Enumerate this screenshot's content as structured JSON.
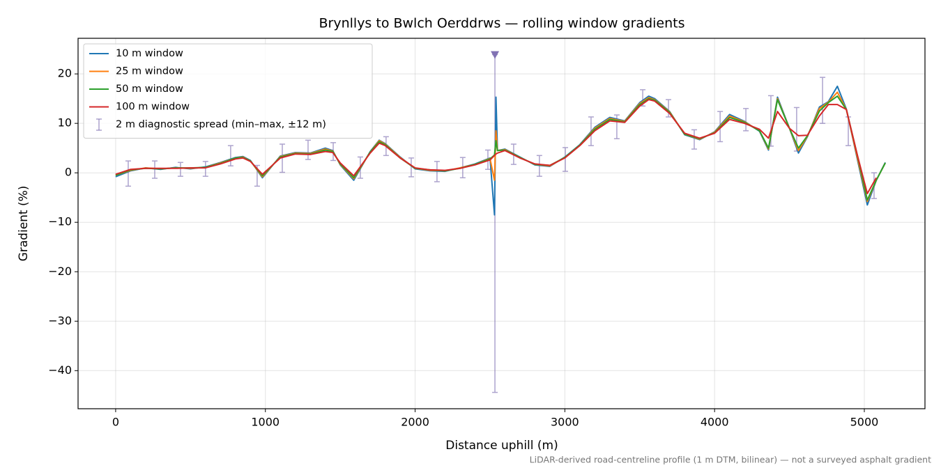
{
  "chart_data": {
    "type": "line",
    "title": "Brynllys to Bwlch Oerddrws — rolling window gradients",
    "xlabel": "Distance uphill (m)",
    "ylabel": "Gradient (%)",
    "footnote": "LiDAR-derived road-centreline profile (1 m DTM, bilinear) — not a surveyed asphalt gradient",
    "xlim": [
      -251,
      5405
    ],
    "ylim": [
      -47.7,
      27.2
    ],
    "xticks": [
      0,
      1000,
      2000,
      3000,
      4000,
      5000
    ],
    "yticks": [
      {
        "value": -40,
        "label": "−40"
      },
      {
        "value": -30,
        "label": "−30"
      },
      {
        "value": -20,
        "label": "−20"
      },
      {
        "value": -10,
        "label": "−10"
      },
      0,
      10,
      20
    ],
    "grid": true,
    "legend": "upper left",
    "x": [
      0,
      100,
      200,
      300,
      400,
      500,
      600,
      700,
      800,
      850,
      900,
      980,
      1100,
      1200,
      1300,
      1400,
      1450,
      1500,
      1590,
      1700,
      1760,
      1800,
      1900,
      2000,
      2100,
      2200,
      2300,
      2400,
      2500,
      2530,
      2540,
      2550,
      2600,
      2700,
      2800,
      2900,
      3000,
      3100,
      3200,
      3300,
      3400,
      3500,
      3560,
      3600,
      3700,
      3800,
      3900,
      4000,
      4100,
      4200,
      4300,
      4360,
      4420,
      4500,
      4560,
      4620,
      4700,
      4760,
      4820,
      4880,
      4950,
      5020,
      5080,
      5140
    ],
    "series": [
      {
        "name": "10 m window",
        "color": "#1f77b4",
        "values": [
          -0.8,
          0.4,
          1.0,
          0.7,
          1.1,
          0.8,
          1.2,
          2.1,
          3.1,
          3.3,
          2.5,
          -1.0,
          3.4,
          4.1,
          4.0,
          5.0,
          4.5,
          1.6,
          -1.5,
          4.3,
          6.6,
          5.9,
          3.2,
          0.8,
          0.4,
          0.3,
          1.0,
          1.8,
          3.0,
          -8.5,
          15.3,
          4.5,
          4.8,
          3.2,
          1.6,
          1.3,
          3.2,
          5.7,
          9.2,
          11.2,
          10.5,
          14.2,
          15.5,
          15.0,
          12.4,
          7.7,
          6.7,
          8.3,
          11.8,
          10.4,
          8.4,
          4.6,
          15.3,
          9.0,
          4.0,
          7.3,
          13.3,
          14.4,
          17.5,
          12.9,
          3.2,
          -6.5,
          -1.5,
          2.1
        ]
      },
      {
        "name": "25 m window",
        "color": "#ff7f0e",
        "values": [
          -0.5,
          0.5,
          1.0,
          0.8,
          1.0,
          0.9,
          1.1,
          2.0,
          3.0,
          3.2,
          2.4,
          -0.8,
          3.3,
          4.0,
          3.9,
          4.8,
          4.4,
          1.7,
          -1.2,
          4.2,
          6.5,
          5.8,
          3.1,
          0.9,
          0.5,
          0.4,
          1.0,
          1.7,
          2.9,
          -1.5,
          8.5,
          4.5,
          4.7,
          3.1,
          1.7,
          1.4,
          3.1,
          5.6,
          9.0,
          11.0,
          10.4,
          14.0,
          15.2,
          14.8,
          12.3,
          7.8,
          6.8,
          8.2,
          11.5,
          10.3,
          8.5,
          4.8,
          15.0,
          9.0,
          4.5,
          7.4,
          13.0,
          14.3,
          16.3,
          12.8,
          3.5,
          -5.8,
          -1.5,
          2.0
        ]
      },
      {
        "name": "50 m window",
        "color": "#2ca02c",
        "values": [
          -0.5,
          0.6,
          0.9,
          0.8,
          1.0,
          1.0,
          1.1,
          1.9,
          3.0,
          3.1,
          2.4,
          -0.6,
          3.2,
          3.9,
          3.8,
          4.6,
          4.3,
          1.8,
          -1.0,
          4.2,
          6.3,
          5.7,
          3.0,
          0.9,
          0.6,
          0.4,
          0.9,
          1.7,
          2.8,
          3.6,
          6.5,
          4.5,
          4.6,
          3.1,
          1.7,
          1.5,
          3.1,
          5.6,
          8.8,
          10.8,
          10.3,
          13.8,
          15.0,
          14.7,
          12.2,
          7.8,
          6.9,
          8.1,
          11.2,
          10.2,
          8.5,
          5.0,
          14.8,
          9.0,
          5.0,
          7.5,
          12.5,
          14.2,
          15.5,
          12.8,
          4.0,
          -5.5,
          -1.5,
          2.0
        ]
      },
      {
        "name": "100 m window",
        "color": "#d62728",
        "values": [
          -0.3,
          0.7,
          0.9,
          0.9,
          0.9,
          1.0,
          1.0,
          1.8,
          2.8,
          3.0,
          2.3,
          -0.3,
          3.0,
          3.8,
          3.7,
          4.3,
          4.1,
          2.0,
          -0.6,
          4.0,
          6.0,
          5.5,
          3.0,
          1.0,
          0.6,
          0.5,
          0.9,
          1.6,
          2.6,
          3.5,
          3.8,
          4.0,
          4.5,
          3.0,
          1.8,
          1.5,
          3.0,
          5.5,
          8.5,
          10.5,
          10.2,
          13.5,
          14.8,
          14.5,
          12.0,
          8.0,
          7.0,
          8.0,
          10.8,
          10.0,
          8.8,
          7.0,
          12.4,
          9.0,
          7.5,
          7.6,
          11.5,
          13.8,
          13.8,
          12.8,
          4.0,
          -4.2,
          -1.0,
          null
        ]
      }
    ],
    "errorbars": {
      "name": "2 m diagnostic spread (min–max, ±12 m)",
      "color": "#8172b3",
      "x": [
        84,
        261,
        433,
        600,
        768,
        945,
        1113,
        1285,
        1453,
        1634,
        1806,
        1974,
        2146,
        2318,
        2486,
        2533,
        2658,
        2830,
        3003,
        3175,
        3347,
        3520,
        3692,
        3864,
        4037,
        4209,
        4376,
        4548,
        4721,
        4893,
        5065
      ],
      "low": [
        -2.7,
        -1.1,
        -0.7,
        -0.7,
        1.4,
        -2.7,
        0.1,
        2.7,
        2.5,
        -1.1,
        3.5,
        -0.8,
        -1.8,
        -1.0,
        0.7,
        -44.4,
        1.7,
        -0.7,
        0.3,
        5.5,
        6.9,
        13.5,
        11.3,
        4.8,
        6.3,
        8.5,
        5.4,
        4.4,
        10.0,
        5.5,
        -5.2
      ],
      "high": [
        2.4,
        2.4,
        2.1,
        2.3,
        5.5,
        1.5,
        5.8,
        6.6,
        6.1,
        3.2,
        7.3,
        3.0,
        2.3,
        3.1,
        4.6,
        23.9,
        5.8,
        3.5,
        5.1,
        11.3,
        11.7,
        16.8,
        14.8,
        8.7,
        12.4,
        13.0,
        15.6,
        13.2,
        19.3,
        11.3,
        0
      ]
    },
    "clip_marker": {
      "x": 2533,
      "y": 23.9,
      "color": "#8172b3"
    }
  }
}
